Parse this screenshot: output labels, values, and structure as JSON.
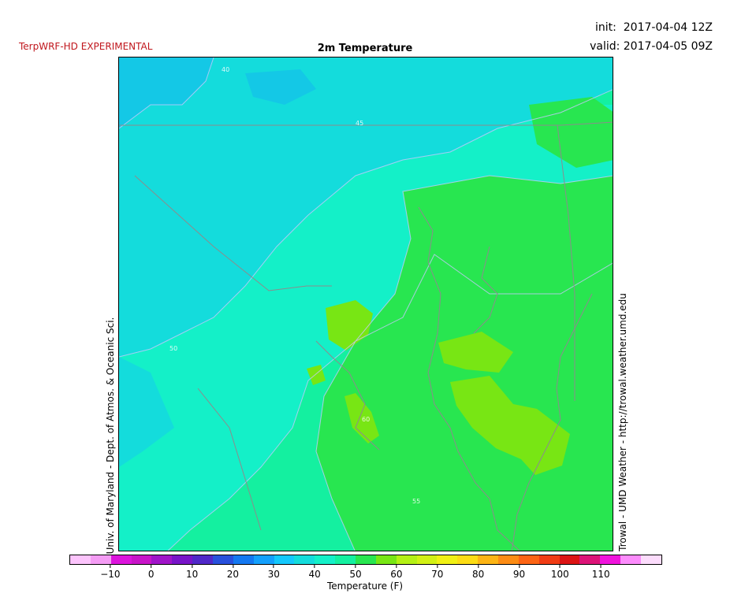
{
  "header": {
    "model_label": "TerpWRF-HD EXPERIMENTAL",
    "init_text": "init:  2017-04-04 12Z",
    "valid_text": "valid: 2017-04-05 09Z",
    "title": "2m Temperature"
  },
  "credits": {
    "left": "Univ. of Maryland - Dept. of Atmos. & Oceanic Sci.",
    "right": "Trowal - UMD Weather - http://trowal.weather.umd.edu"
  },
  "colorbar": {
    "label": "Temperature (F)",
    "colors": [
      "#fcc4fc",
      "#f49cf4",
      "#dc14dc",
      "#c814c8",
      "#a014c8",
      "#7814c8",
      "#5028c8",
      "#2850dc",
      "#1478f0",
      "#14a0fc",
      "#14c8fc",
      "#14dcdc",
      "#14f0c8",
      "#14f0a0",
      "#28e650",
      "#78e614",
      "#b4f014",
      "#d2f014",
      "#f0f014",
      "#fcdc14",
      "#fcb414",
      "#fc8c14",
      "#fc6414",
      "#f03c14",
      "#dc1414",
      "#dc1478",
      "#f014dc",
      "#fc8cfc",
      "#fcdcfc"
    ],
    "ticks": [
      "−10",
      "0",
      "10",
      "20",
      "30",
      "40",
      "50",
      "60",
      "70",
      "80",
      "90",
      "100",
      "110"
    ]
  },
  "map": {
    "field_colors": {
      "cold": "#14c8e6",
      "cool": "#14dcdc",
      "mid": "#14f0c8",
      "mild": "#14f0a0",
      "warm": "#28e650",
      "warmest": "#78e614"
    },
    "contour_labels": [
      "45",
      "40",
      "50",
      "55",
      "60"
    ]
  }
}
